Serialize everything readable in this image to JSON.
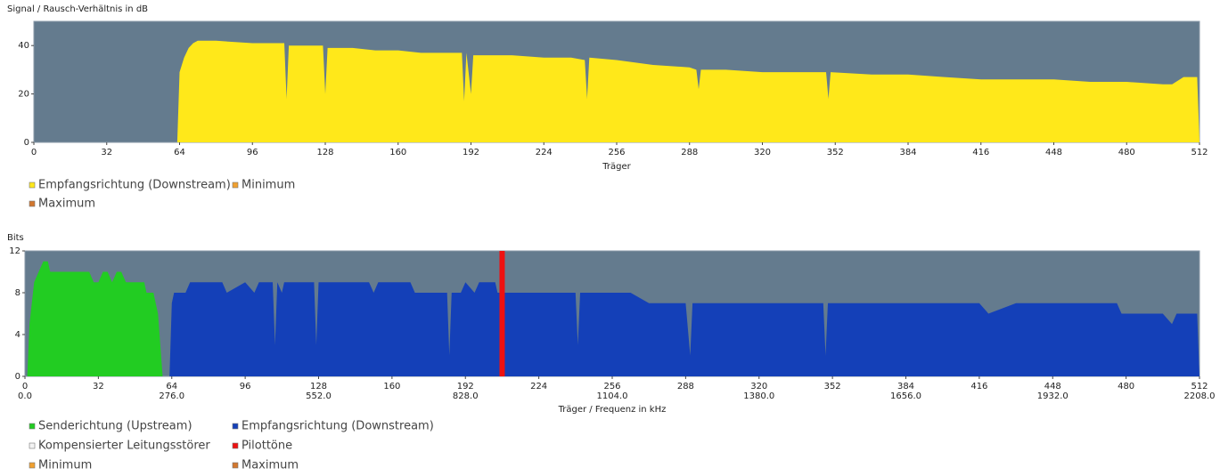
{
  "chart_data": [
    {
      "type": "area",
      "y_label": "Signal / Rausch-Verhältnis in dB",
      "x_label": "Träger",
      "xlim": [
        0,
        512
      ],
      "xticks": [
        0,
        32,
        64,
        96,
        128,
        160,
        192,
        224,
        256,
        288,
        320,
        352,
        384,
        416,
        448,
        480,
        512
      ],
      "ylim": [
        0,
        50
      ],
      "yticks": [
        0,
        20,
        40
      ],
      "grid": false,
      "background": "#647b8e",
      "series": [
        {
          "name": "Empfangsrichtung (Downstream)",
          "color": "#ffe81a",
          "x": [
            0,
            63,
            64,
            66,
            68,
            70,
            72,
            80,
            96,
            110,
            111,
            112,
            127,
            128,
            129,
            140,
            150,
            160,
            170,
            188,
            189,
            190,
            192,
            193,
            210,
            224,
            236,
            242,
            243,
            244,
            256,
            264,
            272,
            288,
            291,
            292,
            293,
            304,
            320,
            336,
            348,
            349,
            350,
            368,
            384,
            400,
            416,
            432,
            448,
            464,
            480,
            496,
            500,
            505,
            511,
            512
          ],
          "values": [
            0,
            0,
            29,
            35,
            39,
            41,
            42,
            42,
            41,
            41,
            18,
            40,
            40,
            20,
            39,
            39,
            38,
            38,
            37,
            37,
            17,
            37,
            20,
            36,
            36,
            35,
            35,
            34,
            18,
            35,
            34,
            33,
            32,
            31,
            30,
            22,
            30,
            30,
            29,
            29,
            29,
            18,
            29,
            28,
            28,
            27,
            26,
            26,
            26,
            25,
            25,
            24,
            24,
            27,
            27,
            0
          ]
        },
        {
          "name": "Minimum",
          "color": "#f0a030",
          "x": [],
          "values": []
        },
        {
          "name": "Maximum",
          "color": "#d2772e",
          "x": [],
          "values": []
        }
      ]
    },
    {
      "type": "area",
      "y_label": "Bits",
      "x_label": "Träger / Frequenz in kHz",
      "xlim": [
        0,
        512
      ],
      "xticks": [
        0,
        32,
        64,
        96,
        128,
        160,
        192,
        224,
        256,
        288,
        320,
        352,
        384,
        416,
        448,
        480,
        512
      ],
      "x2lim": [
        0,
        2208
      ],
      "x2ticks": [
        {
          "value": 0,
          "label": "0.0"
        },
        {
          "value": 276,
          "label": "276.0"
        },
        {
          "value": 552,
          "label": "552.0"
        },
        {
          "value": 828,
          "label": "828.0"
        },
        {
          "value": 1104,
          "label": "1104.0"
        },
        {
          "value": 1380,
          "label": "1380.0"
        },
        {
          "value": 1656,
          "label": "1656.0"
        },
        {
          "value": 1932,
          "label": "1932.0"
        },
        {
          "value": 2208,
          "label": "2208.0"
        }
      ],
      "ylim": [
        0,
        12
      ],
      "yticks": [
        0,
        4,
        8,
        12
      ],
      "grid": false,
      "background": "#647b8e",
      "series": [
        {
          "name": "Senderichtung (Upstream)",
          "color": "#22cc22",
          "x": [
            0,
            1,
            2,
            3,
            4,
            6,
            8,
            10,
            11,
            20,
            28,
            30,
            32,
            34,
            36,
            38,
            40,
            42,
            44,
            52,
            53,
            56,
            57,
            58,
            60
          ],
          "values": [
            0,
            0,
            5,
            7,
            9,
            10,
            11,
            11,
            10,
            10,
            10,
            9,
            9,
            10,
            10,
            9,
            10,
            10,
            9,
            9,
            8,
            8,
            7,
            6,
            0
          ]
        },
        {
          "name": "Empfangsrichtung (Downstream)",
          "color": "#1440b8",
          "x": [
            63,
            64,
            65,
            70,
            72,
            86,
            88,
            96,
            100,
            102,
            108,
            109,
            110,
            112,
            113,
            126,
            127,
            128,
            150,
            152,
            154,
            168,
            170,
            184,
            185,
            186,
            190,
            192,
            196,
            198,
            205,
            206,
            212,
            224,
            240,
            241,
            242,
            256,
            264,
            272,
            288,
            290,
            291,
            304,
            320,
            336,
            348,
            349,
            350,
            368,
            384,
            400,
            416,
            420,
            432,
            448,
            476,
            478,
            496,
            500,
            502,
            511,
            512
          ],
          "values": [
            0,
            7,
            8,
            8,
            9,
            9,
            8,
            9,
            8,
            9,
            9,
            3,
            9,
            8,
            9,
            9,
            3,
            9,
            9,
            8,
            9,
            9,
            8,
            8,
            2,
            8,
            8,
            9,
            8,
            9,
            9,
            8,
            8,
            8,
            8,
            3,
            8,
            8,
            8,
            7,
            7,
            2,
            7,
            7,
            7,
            7,
            7,
            2,
            7,
            7,
            7,
            7,
            7,
            6,
            7,
            7,
            7,
            6,
            6,
            5,
            6,
            6,
            0
          ]
        },
        {
          "name": "Kompensierter Leitungsstörer",
          "color": "#f4f4f4",
          "x": [],
          "values": []
        },
        {
          "name": "Pilottöne",
          "color": "#ee1111",
          "kind": "bar",
          "x": [
            208
          ],
          "values": [
            12
          ]
        },
        {
          "name": "Minimum",
          "color": "#f0a030",
          "x": [],
          "values": []
        },
        {
          "name": "Maximum",
          "color": "#d2772e",
          "x": [],
          "values": []
        }
      ]
    }
  ]
}
